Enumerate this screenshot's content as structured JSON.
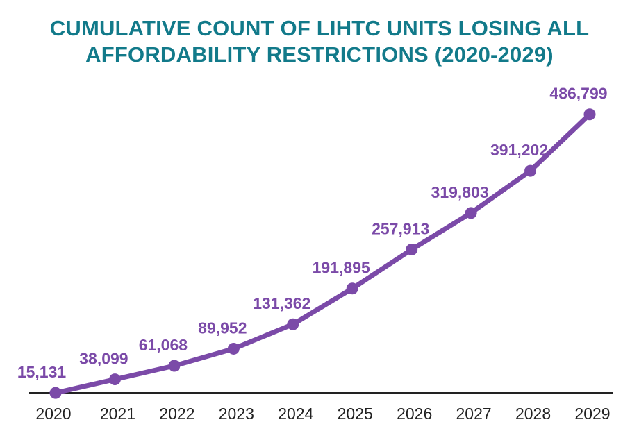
{
  "chart_data": {
    "type": "line",
    "title_lines": [
      "CUMULATIVE COUNT OF LIHTC UNITS LOSING ALL",
      "AFFORDABILITY RESTRICTIONS (2020-2029)"
    ],
    "x": [
      "2020",
      "2021",
      "2022",
      "2023",
      "2024",
      "2025",
      "2026",
      "2027",
      "2028",
      "2029"
    ],
    "series": [
      {
        "values": [
          15131,
          38099,
          61068,
          89952,
          131362,
          191895,
          257913,
          319803,
          391202,
          486799
        ],
        "labels": [
          "15,131",
          "38,099",
          "61,068",
          "89,952",
          "131,362",
          "191,895",
          "257,913",
          "319,803",
          "391,202",
          "486,799"
        ]
      }
    ],
    "ylim": [
      0,
      500000
    ],
    "grid": false,
    "colors": {
      "line": "#7b4aa8",
      "title": "#127a8a",
      "axis": "#222222"
    }
  }
}
